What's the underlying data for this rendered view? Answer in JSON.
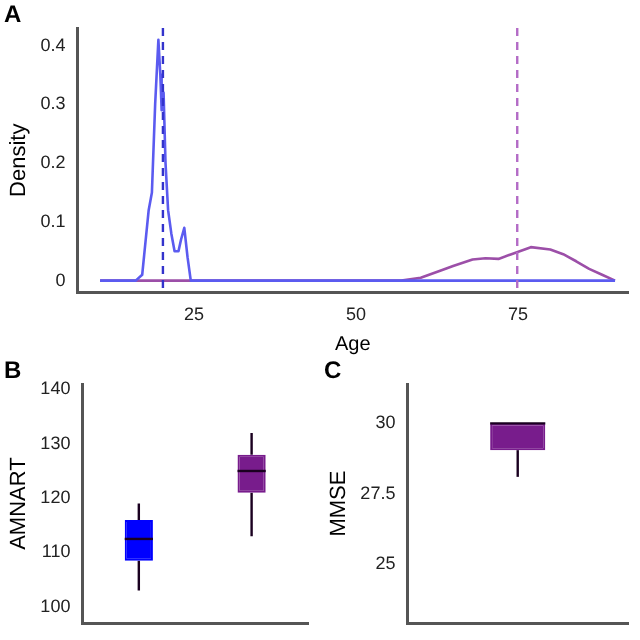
{
  "chart_data": [
    {
      "type": "line",
      "title": "A",
      "xlabel": "Age",
      "ylabel": "Density",
      "xlim": [
        7,
        92
      ],
      "xticks": [
        25,
        50,
        75
      ],
      "ylim": [
        -0.02,
        0.43
      ],
      "yticks": [
        0,
        0.1,
        0.2,
        0.3,
        0.4
      ],
      "grid": false,
      "legend": false,
      "marker": "none",
      "series": [
        {
          "color": "#5b5bf0",
          "x": [
            10.5,
            16,
            17,
            18,
            18.5,
            19,
            19.5,
            19.8,
            20,
            20.3,
            20.6,
            21,
            21.5,
            22,
            22.6,
            23,
            23.5,
            24,
            24.5,
            30,
            50,
            70,
            90
          ],
          "values": [
            0,
            0,
            0.01,
            0.12,
            0.15,
            0.3,
            0.41,
            0.35,
            0.29,
            0.32,
            0.2,
            0.12,
            0.08,
            0.05,
            0.05,
            0.07,
            0.09,
            0.04,
            0,
            0,
            0,
            0,
            0
          ]
        },
        {
          "color": "#9c4fa8",
          "x": [
            10.5,
            30,
            50,
            57,
            60,
            63,
            65,
            68,
            70,
            72,
            74,
            77,
            80,
            82,
            84,
            86,
            88,
            90
          ],
          "values": [
            0,
            0,
            0,
            0,
            0.005,
            0.017,
            0.025,
            0.036,
            0.038,
            0.037,
            0.045,
            0.057,
            0.053,
            0.045,
            0.033,
            0.02,
            0.01,
            0
          ]
        }
      ],
      "ref_lines": [
        {
          "axis": "x",
          "value": 20.2,
          "color": "#3333cc",
          "line_style": "dashed"
        },
        {
          "axis": "x",
          "value": 74.9,
          "color": "#b36bc6",
          "line_style": "dashed"
        }
      ]
    },
    {
      "type": "box",
      "title": "B",
      "ylabel": "AMNART",
      "categories": [
        null,
        null
      ],
      "colors": [
        "#0000ff",
        "#781c8c"
      ],
      "ylim": [
        97,
        141
      ],
      "yticks": [
        100,
        110,
        120,
        130,
        140
      ],
      "grid": false,
      "legend": false,
      "boxes": [
        {
          "low": 103,
          "q1": 108.5,
          "median": 112.5,
          "q3": 116,
          "high": 119
        },
        {
          "low": 113,
          "q1": 121,
          "median": 125,
          "q3": 128,
          "high": 132
        }
      ]
    },
    {
      "type": "box",
      "title": "C",
      "ylabel": "MMSE",
      "categories": [
        null
      ],
      "colors": [
        "#781c8c"
      ],
      "ylim": [
        22.9,
        31.4
      ],
      "yticks": [
        25,
        27.5,
        30
      ],
      "grid": false,
      "legend": false,
      "boxes": [
        {
          "low": 28.1,
          "q1": 29.05,
          "median": 30,
          "q3": 30,
          "high": 30
        }
      ]
    }
  ]
}
